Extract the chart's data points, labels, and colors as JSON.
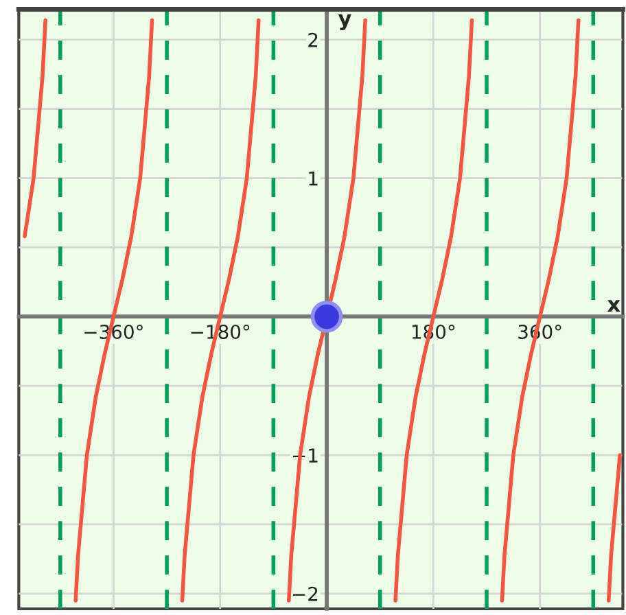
{
  "chart_data": {
    "type": "line",
    "xlabel": "x",
    "ylabel": "y",
    "xlim": [
      -520,
      500
    ],
    "ylim": [
      -2.11,
      2.22
    ],
    "xticks": [
      {
        "value": -360,
        "label": "−360°"
      },
      {
        "value": -180,
        "label": "−180°"
      },
      {
        "value": 180,
        "label": "180°"
      },
      {
        "value": 360,
        "label": "360°"
      }
    ],
    "yticks": [
      {
        "value": -2,
        "label": "−2"
      },
      {
        "value": -1.5,
        "label": null
      },
      {
        "value": -1,
        "label": "−1"
      },
      {
        "value": -0.5,
        "label": null
      },
      {
        "value": 0.5,
        "label": null
      },
      {
        "value": 1,
        "label": "1"
      },
      {
        "value": 1.5,
        "label": null
      },
      {
        "value": 2,
        "label": "2"
      }
    ],
    "grid": true,
    "marker": "none",
    "line_style": "solid",
    "series": [
      {
        "color": "#f4553f",
        "x": [
          -510,
          -495,
          -480,
          -475
        ],
        "values": [
          0.58,
          1,
          1.73,
          2.14
        ]
      },
      {
        "color": "#f4553f",
        "x": [
          -424,
          -420,
          -405,
          -390,
          -375,
          -360,
          -345,
          -330,
          -315,
          -300,
          -295
        ],
        "values": [
          -2.05,
          -1.73,
          -1,
          -0.58,
          -0.27,
          0,
          0.27,
          0.58,
          1,
          1.73,
          2.14
        ]
      },
      {
        "color": "#f4553f",
        "x": [
          -244,
          -240,
          -225,
          -210,
          -195,
          -180,
          -165,
          -150,
          -135,
          -120,
          -115
        ],
        "values": [
          -2.05,
          -1.73,
          -1,
          -0.58,
          -0.27,
          0,
          0.27,
          0.58,
          1,
          1.73,
          2.14
        ]
      },
      {
        "color": "#f4553f",
        "x": [
          -64,
          -60,
          -45,
          -30,
          -15,
          0,
          15,
          30,
          45,
          60,
          65
        ],
        "values": [
          -2.05,
          -1.73,
          -1,
          -0.58,
          -0.27,
          0,
          0.27,
          0.58,
          1,
          1.73,
          2.14
        ]
      },
      {
        "color": "#f4553f",
        "x": [
          116,
          120,
          135,
          150,
          165,
          180,
          195,
          210,
          225,
          240,
          245
        ],
        "values": [
          -2.05,
          -1.73,
          -1,
          -0.58,
          -0.27,
          0,
          0.27,
          0.58,
          1,
          1.73,
          2.14
        ]
      },
      {
        "color": "#f4553f",
        "x": [
          296,
          300,
          315,
          330,
          345,
          360,
          375,
          390,
          405,
          420,
          425
        ],
        "values": [
          -2.05,
          -1.73,
          -1,
          -0.58,
          -0.27,
          0,
          0.27,
          0.58,
          1,
          1.73,
          2.14
        ]
      },
      {
        "color": "#f4553f",
        "x": [
          476,
          480,
          495
        ],
        "values": [
          -2.05,
          -1.73,
          -1
        ]
      },
      {
        "type": "scatter",
        "marker": "circle",
        "color": "#3a3ae0",
        "x": [
          0
        ],
        "values": [
          0
        ]
      }
    ],
    "ref_lines": [
      {
        "axis": "x",
        "value": -450,
        "color": "#00a05a",
        "line_style": "dashed"
      },
      {
        "axis": "x",
        "value": -270,
        "color": "#00a05a",
        "line_style": "dashed"
      },
      {
        "axis": "x",
        "value": -90,
        "color": "#00a05a",
        "line_style": "dashed"
      },
      {
        "axis": "x",
        "value": 90,
        "color": "#00a05a",
        "line_style": "dashed"
      },
      {
        "axis": "x",
        "value": 270,
        "color": "#00a05a",
        "line_style": "dashed"
      },
      {
        "axis": "x",
        "value": 450,
        "color": "#00a05a",
        "line_style": "dashed"
      }
    ]
  }
}
